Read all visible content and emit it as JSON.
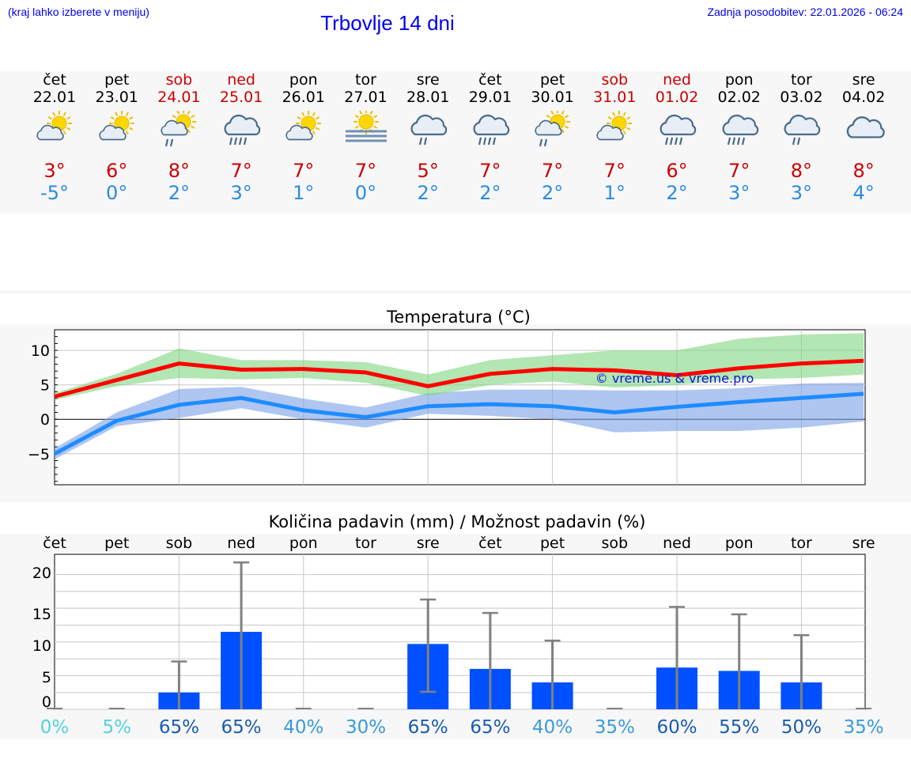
{
  "header": {
    "hint": "(kraj lahko izberete v meniju)",
    "title": "Trbovlje 14 dni",
    "updated": "Zadnja posodobitev: 22.01.2026 - 06:24"
  },
  "days": [
    {
      "name": "čet",
      "date": "22.01",
      "weekend": false,
      "icon": "sun-cloud",
      "max": "3°",
      "min": "-5°"
    },
    {
      "name": "pet",
      "date": "23.01",
      "weekend": false,
      "icon": "sun-cloud",
      "max": "6°",
      "min": "0°"
    },
    {
      "name": "sob",
      "date": "24.01",
      "weekend": true,
      "icon": "sun-cloud-rain",
      "max": "8°",
      "min": "2°"
    },
    {
      "name": "ned",
      "date": "25.01",
      "weekend": true,
      "icon": "cloud-rain",
      "max": "7°",
      "min": "3°"
    },
    {
      "name": "pon",
      "date": "26.01",
      "weekend": false,
      "icon": "sun-cloud",
      "max": "7°",
      "min": "1°"
    },
    {
      "name": "tor",
      "date": "27.01",
      "weekend": false,
      "icon": "sun-fog",
      "max": "7°",
      "min": "0°"
    },
    {
      "name": "sre",
      "date": "28.01",
      "weekend": false,
      "icon": "cloud-light-rain",
      "max": "5°",
      "min": "2°"
    },
    {
      "name": "čet",
      "date": "29.01",
      "weekend": false,
      "icon": "cloud-rain",
      "max": "7°",
      "min": "2°"
    },
    {
      "name": "pet",
      "date": "30.01",
      "weekend": false,
      "icon": "sun-cloud-rain",
      "max": "7°",
      "min": "2°"
    },
    {
      "name": "sob",
      "date": "31.01",
      "weekend": true,
      "icon": "sun-cloud",
      "max": "7°",
      "min": "1°"
    },
    {
      "name": "ned",
      "date": "01.02",
      "weekend": true,
      "icon": "cloud-rain",
      "max": "6°",
      "min": "2°"
    },
    {
      "name": "pon",
      "date": "02.02",
      "weekend": false,
      "icon": "cloud-rain",
      "max": "7°",
      "min": "3°"
    },
    {
      "name": "tor",
      "date": "03.02",
      "weekend": false,
      "icon": "cloud-light-rain",
      "max": "8°",
      "min": "3°"
    },
    {
      "name": "sre",
      "date": "04.02",
      "weekend": false,
      "icon": "cloud",
      "max": "8°",
      "min": "4°"
    }
  ],
  "colors": {
    "max_line": "#ff0000",
    "min_line": "#1e8cff",
    "max_band": "#7fd67f",
    "min_band": "#7aa0e8",
    "bar": "#0050ff",
    "err": "#808080",
    "weekend": "#cc0000",
    "min_text": "#2a8be0"
  },
  "chart_data": [
    {
      "type": "line",
      "title": "Temperatura (°C)",
      "watermark": "© vreme.us & vreme.pro",
      "ylim": [
        -9.5,
        13
      ],
      "yticks": [
        "10",
        "5",
        "0",
        "−5"
      ],
      "ytick_values": [
        10,
        5,
        0,
        -5
      ],
      "x": [
        0,
        1,
        2,
        3,
        4,
        5,
        6,
        7,
        8,
        9,
        10,
        11,
        12,
        13
      ],
      "series": [
        {
          "name": "max",
          "values": [
            3.3,
            5.7,
            8.1,
            7.2,
            7.3,
            6.8,
            4.8,
            6.6,
            7.3,
            7.1,
            6.4,
            7.4,
            8.1,
            8.5
          ],
          "low": [
            2.8,
            4.8,
            6.0,
            5.8,
            6.0,
            5.3,
            3.4,
            5.0,
            5.5,
            4.6,
            5.0,
            5.8,
            6.0,
            6.5
          ],
          "high": [
            3.8,
            6.6,
            10.3,
            8.6,
            8.6,
            8.3,
            6.5,
            8.6,
            9.3,
            10.0,
            10.0,
            11.7,
            12.3,
            12.5
          ]
        },
        {
          "name": "min",
          "values": [
            -5.0,
            -0.2,
            2.1,
            3.1,
            1.3,
            0.3,
            1.9,
            2.2,
            1.9,
            1.0,
            1.8,
            2.5,
            3.1,
            3.7
          ],
          "low": [
            -5.8,
            -1.0,
            0.2,
            1.6,
            0.0,
            -1.2,
            0.8,
            0.5,
            0.0,
            -1.9,
            -1.7,
            -1.7,
            -1.2,
            -0.3
          ],
          "high": [
            -4.2,
            1.0,
            4.4,
            4.7,
            3.0,
            1.7,
            3.8,
            4.3,
            4.3,
            4.2,
            4.2,
            4.5,
            5.2,
            5.3
          ]
        }
      ]
    },
    {
      "type": "bar",
      "title": "Količina padavin (mm) / Možnost padavin (%)",
      "categories": [
        "čet",
        "pet",
        "sob",
        "ned",
        "pon",
        "tor",
        "sre",
        "čet",
        "pet",
        "sob",
        "ned",
        "pon",
        "tor",
        "sre"
      ],
      "values": [
        0,
        0,
        2.5,
        11.5,
        0,
        0,
        9.7,
        6.0,
        4.0,
        0,
        6.2,
        5.7,
        4.0,
        0
      ],
      "err_low": [
        0,
        0,
        0,
        0,
        0,
        0,
        2.6,
        0,
        0,
        0,
        0,
        0,
        0,
        0
      ],
      "err_high": [
        0,
        0,
        7.1,
        21.8,
        0,
        0,
        16.3,
        14.3,
        10.2,
        0,
        15.2,
        14.1,
        11.0,
        0
      ],
      "chance": [
        "0%",
        "5%",
        "65%",
        "65%",
        "40%",
        "30%",
        "65%",
        "65%",
        "40%",
        "35%",
        "60%",
        "55%",
        "50%",
        "35%"
      ],
      "chance_values": [
        0,
        5,
        65,
        65,
        40,
        30,
        65,
        65,
        40,
        35,
        60,
        55,
        50,
        35
      ],
      "ylim": [
        0,
        23
      ],
      "yticks": [
        "20",
        "15",
        "10",
        "5",
        "0"
      ],
      "ytick_values": [
        20,
        15,
        10,
        5,
        0
      ]
    }
  ]
}
